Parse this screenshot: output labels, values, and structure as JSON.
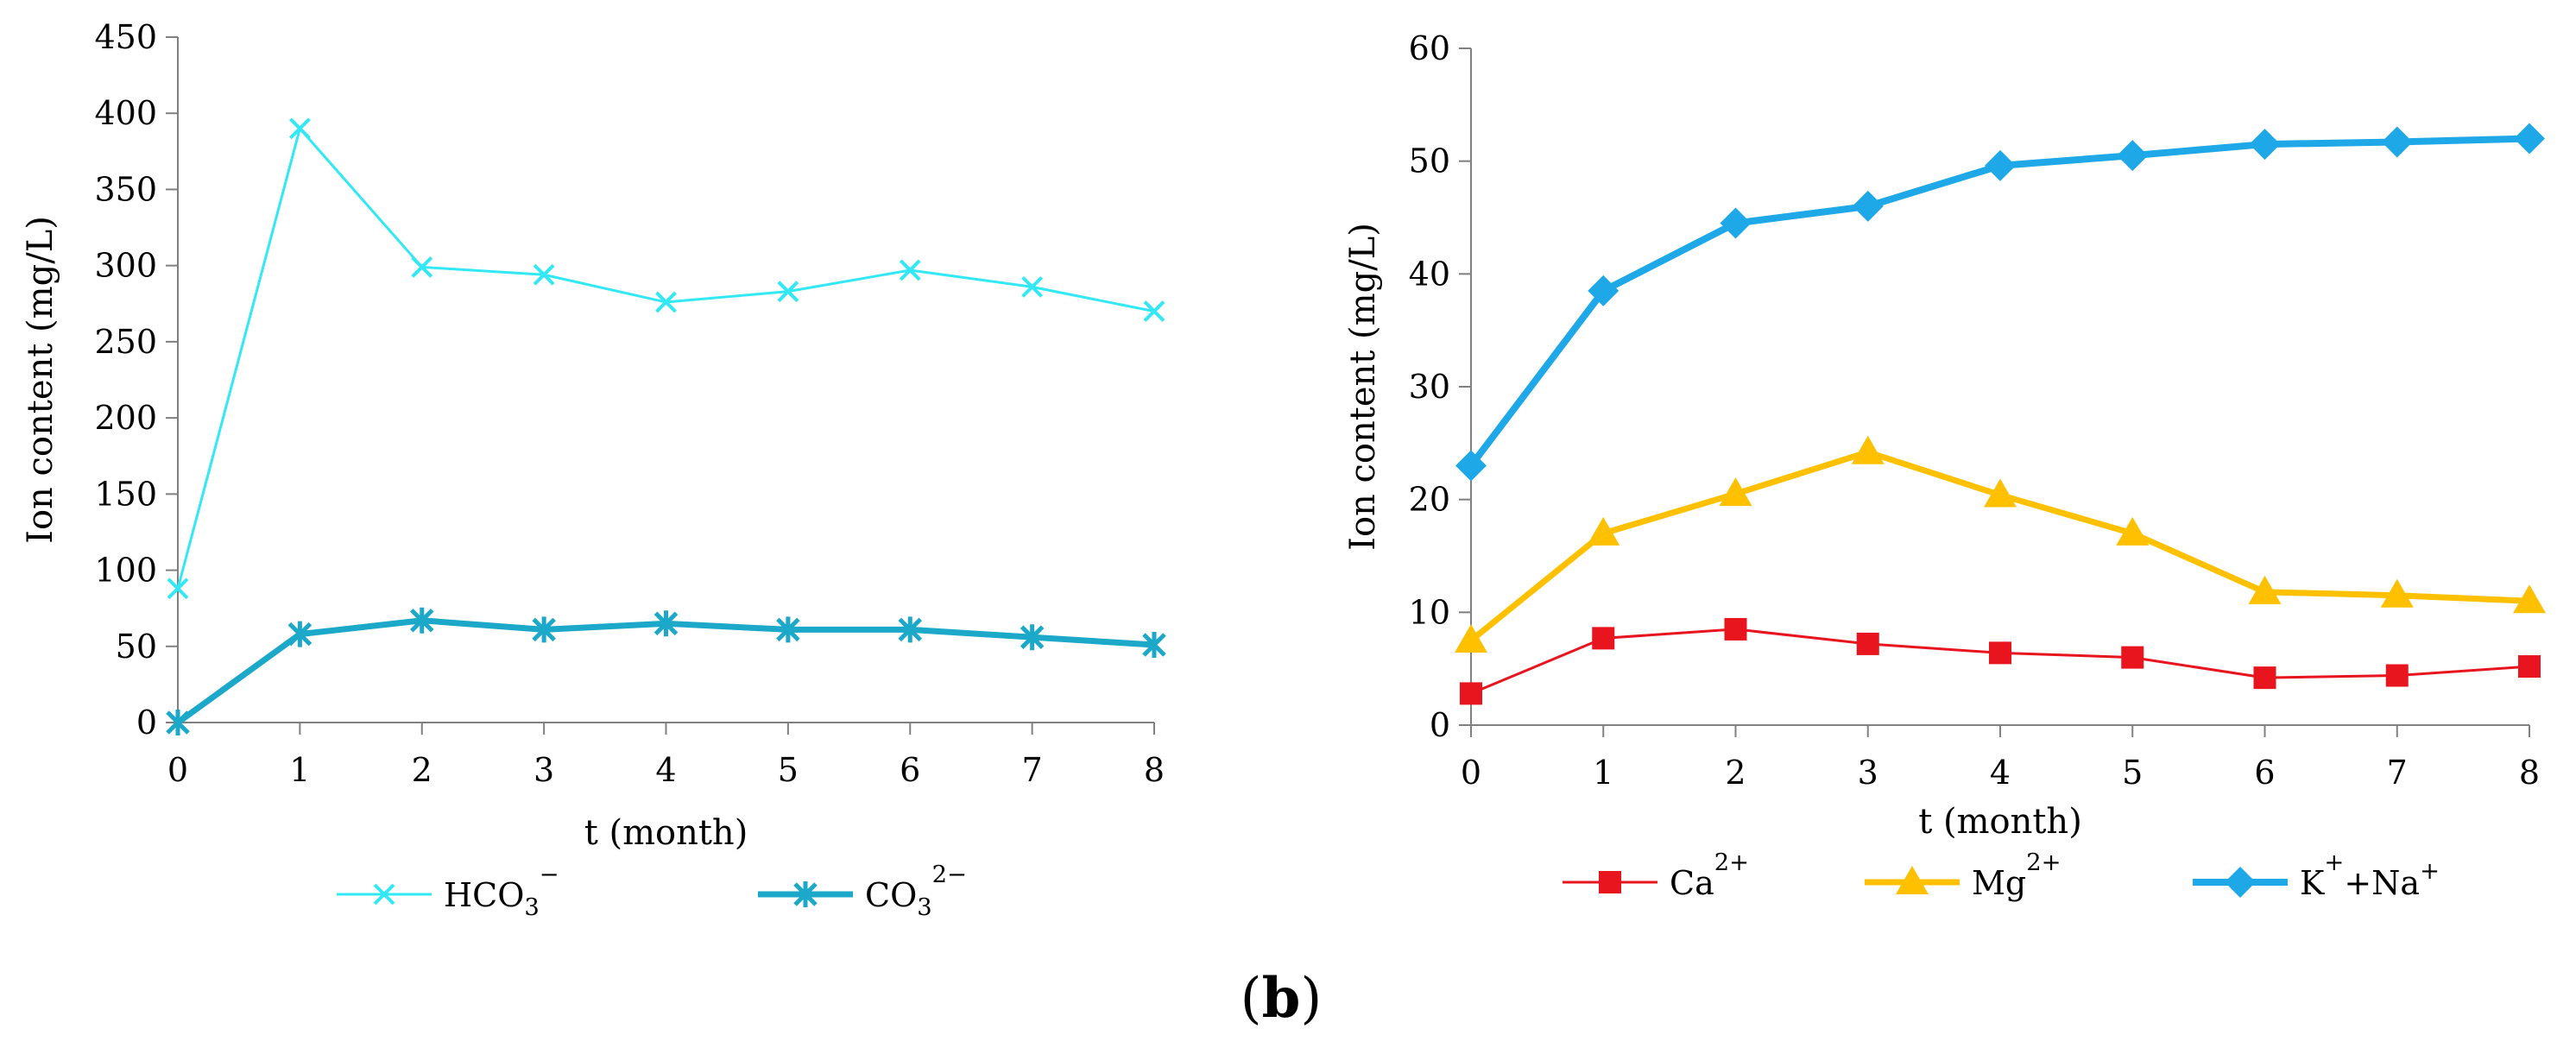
{
  "figure": {
    "panel_label": "(b)",
    "colors": {
      "hco3": "#33E8F5",
      "co3": "#1CA8C8",
      "ca": "#E8141E",
      "mg": "#FFC000",
      "kna": "#1FA8E8",
      "axis": "#808080"
    }
  },
  "chart_data": [
    {
      "type": "line",
      "xlabel": "t (month)",
      "ylabel": "Ion content (mg/L)",
      "ylim": [
        0,
        450
      ],
      "yticks": [
        "0",
        "50",
        "100",
        "150",
        "200",
        "250",
        "300",
        "350",
        "400",
        "450"
      ],
      "x": [
        0,
        1,
        2,
        3,
        4,
        5,
        6,
        7,
        8
      ],
      "xticks": [
        "0",
        "1",
        "2",
        "3",
        "4",
        "5",
        "6",
        "7",
        "8"
      ],
      "legend_position": "bottom",
      "series": [
        {
          "name": "HCO3-",
          "legend": {
            "base": "HCO",
            "sub": "3",
            "sup": "−"
          },
          "marker": "x",
          "color": "#33E8F5",
          "values": [
            88,
            390,
            299,
            294,
            276,
            283,
            297,
            286,
            270
          ]
        },
        {
          "name": "CO32-",
          "legend": {
            "base": "CO",
            "sub": "3",
            "sup": "2−"
          },
          "marker": "star",
          "color": "#1CA8C8",
          "values": [
            0,
            58,
            67,
            61,
            65,
            61,
            61,
            56,
            51
          ]
        }
      ]
    },
    {
      "type": "line",
      "xlabel": "t (month)",
      "ylabel": "Ion content (mg/L)",
      "ylim": [
        0,
        60
      ],
      "yticks": [
        "0",
        "10",
        "20",
        "30",
        "40",
        "50",
        "60"
      ],
      "x": [
        0,
        1,
        2,
        3,
        4,
        5,
        6,
        7,
        8
      ],
      "xticks": [
        "0",
        "1",
        "2",
        "3",
        "4",
        "5",
        "6",
        "7",
        "8"
      ],
      "legend_position": "bottom",
      "series": [
        {
          "name": "Ca2+",
          "legend": {
            "base": "Ca",
            "sub": "",
            "sup": "2+"
          },
          "marker": "square",
          "color": "#E8141E",
          "values": [
            2.8,
            7.7,
            8.5,
            7.2,
            6.4,
            6.0,
            4.2,
            4.4,
            5.2
          ]
        },
        {
          "name": "Mg2+",
          "legend": {
            "base": "Mg",
            "sub": "",
            "sup": "2+"
          },
          "marker": "triangle",
          "color": "#FFC000",
          "values": [
            7.5,
            17.0,
            20.5,
            24.2,
            20.4,
            17.0,
            11.8,
            11.5,
            11.0
          ]
        },
        {
          "name": "K++Na+",
          "legend": {
            "base": "K",
            "sub": "",
            "sup": "+",
            "base2": "+Na",
            "sup2": "+"
          },
          "marker": "diamond",
          "color": "#1FA8E8",
          "values": [
            23.0,
            38.5,
            44.5,
            46.0,
            49.6,
            50.5,
            51.5,
            51.7,
            52.0
          ]
        }
      ]
    }
  ]
}
